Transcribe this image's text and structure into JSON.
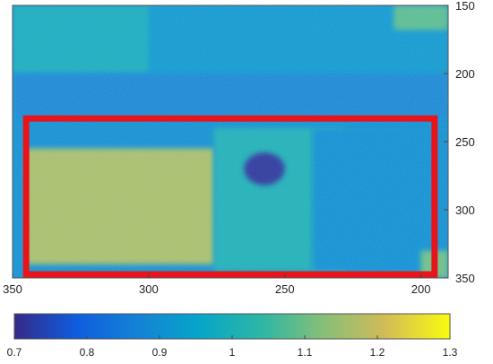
{
  "chart_data": {
    "type": "heatmap",
    "colormap": "parula",
    "x_axis": {
      "direction": "reversed",
      "range": [
        350,
        190
      ],
      "ticks": [
        350,
        300,
        250,
        200
      ]
    },
    "y_axis": {
      "direction": "reversed",
      "range": [
        150,
        350
      ],
      "ticks": [
        150,
        200,
        250,
        300,
        350
      ],
      "position": "right"
    },
    "colorbar": {
      "range": [
        0.7,
        1.3
      ],
      "ticks": [
        "0.7",
        "0.8",
        "0.9",
        "1",
        "1.1",
        "1.2",
        "1.3"
      ],
      "position": "bottom"
    },
    "field": {
      "background_value": 0.9,
      "regions": [
        {
          "name": "upper band",
          "x": [
            190,
            350
          ],
          "y": [
            150,
            233
          ],
          "value": 0.92
        },
        {
          "name": "top-left band",
          "x": [
            300,
            350
          ],
          "y": [
            150,
            200
          ],
          "value": 0.98
        },
        {
          "name": "middle band",
          "x": [
            190,
            350
          ],
          "y": [
            200,
            233
          ],
          "value": 0.88
        },
        {
          "name": "lower-left block",
          "x": [
            276,
            345
          ],
          "y": [
            255,
            340
          ],
          "value": 1.16
        },
        {
          "name": "lower-middle block",
          "x": [
            228,
            276
          ],
          "y": [
            240,
            345
          ],
          "value": 1.0
        },
        {
          "name": "dark spot",
          "x": [
            250,
            265
          ],
          "y": [
            258,
            282
          ],
          "value": 0.72
        },
        {
          "name": "lower-right block",
          "x": [
            190,
            240
          ],
          "y": [
            240,
            345
          ],
          "value": 0.9
        },
        {
          "name": "top-right patch",
          "x": [
            190,
            210
          ],
          "y": [
            150,
            168
          ],
          "value": 1.08
        },
        {
          "name": "bottom-right patch",
          "x": [
            190,
            200
          ],
          "y": [
            330,
            350
          ],
          "value": 1.1
        }
      ]
    },
    "highlight_box": {
      "x": [
        345,
        195
      ],
      "y": [
        233,
        350
      ],
      "color": "#e8141c"
    },
    "title": "",
    "xlabel": "",
    "ylabel": ""
  }
}
